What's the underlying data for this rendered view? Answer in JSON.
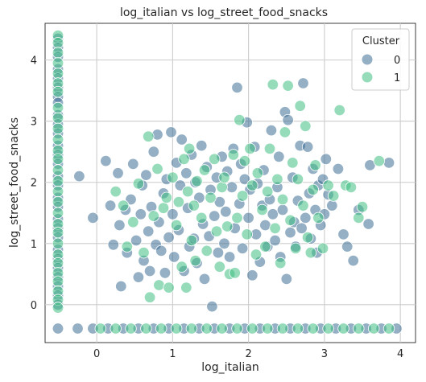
{
  "chart_data": {
    "type": "scatter",
    "title": "log_italian vs log_street_food_snacks",
    "xlabel": "log_italian",
    "ylabel": "log_street_food_snacks",
    "xlim": [
      -0.68,
      4.2
    ],
    "ylim": [
      -0.62,
      4.6
    ],
    "xticks": [
      0,
      1,
      2,
      3,
      4
    ],
    "yticks": [
      0,
      1,
      2,
      3,
      4
    ],
    "grid": true,
    "legend": {
      "title": "Cluster",
      "placement": "top-right",
      "entries": [
        {
          "label": "0",
          "color": "#3e6f96"
        },
        {
          "label": "1",
          "color": "#3fbf84"
        }
      ]
    },
    "series": [
      {
        "name": "0",
        "color": "#3e6f96",
        "points": [
          [
            -0.51,
            4.35
          ],
          [
            -0.51,
            4.2
          ],
          [
            -0.51,
            4.05
          ],
          [
            -0.51,
            3.85
          ],
          [
            -0.51,
            3.7
          ],
          [
            -0.51,
            3.55
          ],
          [
            -0.51,
            3.4
          ],
          [
            -0.51,
            3.3
          ],
          [
            -0.51,
            3.1
          ],
          [
            -0.51,
            2.95
          ],
          [
            -0.51,
            2.8
          ],
          [
            -0.51,
            2.6
          ],
          [
            -0.51,
            2.45
          ],
          [
            -0.51,
            2.3
          ],
          [
            -0.51,
            2.1
          ],
          [
            -0.51,
            1.95
          ],
          [
            -0.51,
            1.75
          ],
          [
            -0.51,
            1.6
          ],
          [
            -0.51,
            1.4
          ],
          [
            -0.51,
            1.25
          ],
          [
            -0.51,
            1.1
          ],
          [
            -0.51,
            0.9
          ],
          [
            -0.51,
            0.75
          ],
          [
            -0.51,
            0.6
          ],
          [
            -0.51,
            0.45
          ],
          [
            -0.51,
            0.3
          ],
          [
            -0.51,
            0.15
          ],
          [
            -0.51,
            0.0
          ],
          [
            -0.51,
            -0.39
          ],
          [
            -0.23,
            2.1
          ],
          [
            -0.05,
            1.42
          ],
          [
            0.12,
            2.35
          ],
          [
            0.18,
            1.62
          ],
          [
            0.22,
            0.98
          ],
          [
            0.28,
            2.15
          ],
          [
            0.3,
            1.3
          ],
          [
            0.32,
            0.3
          ],
          [
            0.38,
            1.55
          ],
          [
            0.4,
            0.85
          ],
          [
            0.45,
            1.72
          ],
          [
            0.48,
            2.3
          ],
          [
            0.52,
            1.05
          ],
          [
            0.55,
            0.45
          ],
          [
            0.58,
            1.48
          ],
          [
            0.6,
            1.95
          ],
          [
            0.62,
            0.72
          ],
          [
            0.65,
            2.12
          ],
          [
            0.68,
            1.2
          ],
          [
            0.7,
            0.55
          ],
          [
            0.72,
            1.6
          ],
          [
            0.75,
            2.5
          ],
          [
            0.78,
            0.98
          ],
          [
            0.8,
            2.78
          ],
          [
            0.82,
            1.35
          ],
          [
            0.85,
            0.88
          ],
          [
            0.88,
            1.82
          ],
          [
            0.9,
            0.52
          ],
          [
            0.92,
            2.05
          ],
          [
            0.95,
            1.1
          ],
          [
            0.98,
            2.82
          ],
          [
            1.0,
            1.48
          ],
          [
            1.02,
            0.78
          ],
          [
            1.05,
            2.32
          ],
          [
            1.08,
            1.22
          ],
          [
            1.1,
            1.95
          ],
          [
            1.12,
            2.7
          ],
          [
            1.15,
            0.55
          ],
          [
            1.18,
            2.15
          ],
          [
            1.2,
            1.58
          ],
          [
            1.22,
            0.95
          ],
          [
            1.25,
            2.45
          ],
          [
            1.28,
            1.08
          ],
          [
            1.3,
            2.0
          ],
          [
            1.32,
            0.68
          ],
          [
            1.35,
            1.75
          ],
          [
            1.38,
            2.6
          ],
          [
            1.4,
            1.32
          ],
          [
            1.42,
            0.42
          ],
          [
            1.45,
            2.25
          ],
          [
            1.48,
            1.12
          ],
          [
            1.5,
            1.88
          ],
          [
            1.52,
            -0.03
          ],
          [
            1.55,
            1.45
          ],
          [
            1.58,
            2.08
          ],
          [
            1.6,
            0.85
          ],
          [
            1.62,
            1.68
          ],
          [
            1.65,
            2.42
          ],
          [
            1.68,
            1.0
          ],
          [
            1.7,
            1.52
          ],
          [
            1.72,
            2.18
          ],
          [
            1.75,
            0.78
          ],
          [
            1.78,
            1.92
          ],
          [
            1.8,
            2.55
          ],
          [
            1.82,
            1.25
          ],
          [
            1.85,
            3.55
          ],
          [
            1.88,
            1.65
          ],
          [
            1.9,
            2.3
          ],
          [
            1.92,
            0.92
          ],
          [
            1.95,
            2.05
          ],
          [
            1.98,
            2.98
          ],
          [
            2.0,
            1.42
          ],
          [
            2.02,
            1.88
          ],
          [
            2.05,
            0.48
          ],
          [
            2.08,
            2.58
          ],
          [
            2.1,
            1.15
          ],
          [
            2.12,
            1.98
          ],
          [
            2.15,
            0.7
          ],
          [
            2.18,
            1.62
          ],
          [
            2.2,
            2.2
          ],
          [
            2.22,
            1.3
          ],
          [
            2.25,
            0.95
          ],
          [
            2.28,
            1.72
          ],
          [
            2.3,
            2.85
          ],
          [
            2.32,
            1.48
          ],
          [
            2.35,
            1.05
          ],
          [
            2.38,
            1.92
          ],
          [
            2.4,
            2.42
          ],
          [
            2.42,
            0.78
          ],
          [
            2.45,
            1.55
          ],
          [
            2.48,
            3.15
          ],
          [
            2.5,
            0.42
          ],
          [
            2.52,
            3.02
          ],
          [
            2.55,
            1.18
          ],
          [
            2.58,
            2.08
          ],
          [
            2.6,
            1.35
          ],
          [
            2.62,
            0.95
          ],
          [
            2.65,
            1.7
          ],
          [
            2.68,
            2.6
          ],
          [
            2.7,
            1.25
          ],
          [
            2.72,
            3.62
          ],
          [
            2.75,
            1.42
          ],
          [
            2.78,
            2.58
          ],
          [
            2.8,
            1.82
          ],
          [
            2.82,
            1.08
          ],
          [
            2.85,
            2.22
          ],
          [
            2.88,
            1.55
          ],
          [
            2.9,
            0.85
          ],
          [
            2.92,
            1.95
          ],
          [
            2.95,
            1.3
          ],
          [
            2.98,
            2.05
          ],
          [
            3.0,
            1.48
          ],
          [
            3.02,
            2.38
          ],
          [
            3.05,
            1.8
          ],
          [
            3.1,
            1.62
          ],
          [
            3.18,
            2.22
          ],
          [
            3.25,
            1.15
          ],
          [
            3.3,
            0.95
          ],
          [
            3.38,
            0.72
          ],
          [
            3.45,
            1.55
          ],
          [
            3.58,
            1.32
          ],
          [
            3.6,
            2.28
          ],
          [
            3.85,
            2.32
          ],
          [
            -0.25,
            -0.39
          ],
          [
            -0.05,
            -0.39
          ],
          [
            0.15,
            -0.39
          ],
          [
            0.35,
            -0.39
          ],
          [
            0.55,
            -0.39
          ],
          [
            0.75,
            -0.39
          ],
          [
            0.95,
            -0.39
          ],
          [
            1.15,
            -0.39
          ],
          [
            1.35,
            -0.39
          ],
          [
            1.55,
            -0.39
          ],
          [
            1.75,
            -0.39
          ],
          [
            1.95,
            -0.39
          ],
          [
            2.15,
            -0.39
          ],
          [
            2.35,
            -0.39
          ],
          [
            2.55,
            -0.39
          ],
          [
            2.75,
            -0.39
          ],
          [
            2.95,
            -0.39
          ],
          [
            3.15,
            -0.39
          ],
          [
            3.35,
            -0.39
          ],
          [
            3.55,
            -0.39
          ],
          [
            3.75,
            -0.39
          ],
          [
            3.95,
            -0.39
          ]
        ]
      },
      {
        "name": "1",
        "color": "#3fbf84",
        "points": [
          [
            -0.51,
            4.4
          ],
          [
            -0.51,
            4.28
          ],
          [
            -0.51,
            4.12
          ],
          [
            -0.51,
            3.95
          ],
          [
            -0.51,
            3.78
          ],
          [
            -0.51,
            3.62
          ],
          [
            -0.51,
            3.48
          ],
          [
            -0.51,
            3.22
          ],
          [
            -0.51,
            3.05
          ],
          [
            -0.51,
            2.88
          ],
          [
            -0.51,
            2.7
          ],
          [
            -0.51,
            2.52
          ],
          [
            -0.51,
            2.38
          ],
          [
            -0.51,
            2.2
          ],
          [
            -0.51,
            2.02
          ],
          [
            -0.51,
            1.85
          ],
          [
            -0.51,
            1.68
          ],
          [
            -0.51,
            1.5
          ],
          [
            -0.51,
            1.32
          ],
          [
            -0.51,
            1.18
          ],
          [
            -0.51,
            1.0
          ],
          [
            -0.51,
            0.82
          ],
          [
            -0.51,
            0.68
          ],
          [
            -0.51,
            0.52
          ],
          [
            -0.51,
            0.38
          ],
          [
            -0.51,
            0.22
          ],
          [
            -0.51,
            0.08
          ],
          [
            -0.51,
            -0.05
          ],
          [
            0.25,
            1.85
          ],
          [
            0.35,
            1.62
          ],
          [
            0.4,
            0.95
          ],
          [
            0.48,
            1.35
          ],
          [
            0.55,
            1.98
          ],
          [
            0.62,
            0.85
          ],
          [
            0.68,
            2.75
          ],
          [
            0.7,
            0.12
          ],
          [
            0.75,
            1.45
          ],
          [
            0.8,
            2.22
          ],
          [
            0.82,
            0.32
          ],
          [
            0.88,
            1.58
          ],
          [
            0.92,
            1.75
          ],
          [
            0.95,
            0.28
          ],
          [
            1.0,
            2.08
          ],
          [
            1.05,
            1.3
          ],
          [
            1.08,
            1.68
          ],
          [
            1.12,
            0.62
          ],
          [
            1.15,
            2.38
          ],
          [
            1.18,
            0.28
          ],
          [
            1.2,
            1.85
          ],
          [
            1.22,
            2.55
          ],
          [
            1.25,
            1.05
          ],
          [
            1.28,
            1.62
          ],
          [
            1.3,
            0.72
          ],
          [
            1.32,
            2.02
          ],
          [
            1.38,
            1.42
          ],
          [
            1.42,
            2.2
          ],
          [
            1.45,
            0.88
          ],
          [
            1.5,
            1.75
          ],
          [
            1.55,
            2.38
          ],
          [
            1.58,
            1.2
          ],
          [
            1.62,
            0.62
          ],
          [
            1.65,
            1.92
          ],
          [
            1.68,
            2.08
          ],
          [
            1.72,
            1.28
          ],
          [
            1.75,
            0.5
          ],
          [
            1.8,
            2.45
          ],
          [
            1.82,
            0.52
          ],
          [
            1.85,
            1.42
          ],
          [
            1.88,
            3.02
          ],
          [
            1.92,
            1.78
          ],
          [
            1.95,
            2.35
          ],
          [
            1.98,
            1.15
          ],
          [
            2.02,
            2.55
          ],
          [
            2.05,
            1.95
          ],
          [
            2.1,
            0.82
          ],
          [
            2.12,
            2.15
          ],
          [
            2.18,
            1.55
          ],
          [
            2.22,
            0.95
          ],
          [
            2.25,
            1.85
          ],
          [
            2.28,
            2.55
          ],
          [
            2.32,
            3.6
          ],
          [
            2.35,
            1.25
          ],
          [
            2.38,
            2.05
          ],
          [
            2.42,
            0.68
          ],
          [
            2.45,
            1.72
          ],
          [
            2.48,
            2.82
          ],
          [
            2.52,
            3.58
          ],
          [
            2.55,
            1.38
          ],
          [
            2.58,
            2.32
          ],
          [
            2.62,
            0.92
          ],
          [
            2.65,
            2.05
          ],
          [
            2.68,
            3.25
          ],
          [
            2.72,
            1.62
          ],
          [
            2.75,
            2.92
          ],
          [
            2.78,
            1.1
          ],
          [
            2.82,
            0.85
          ],
          [
            2.85,
            1.88
          ],
          [
            2.88,
            2.28
          ],
          [
            2.92,
            1.42
          ],
          [
            2.98,
            0.92
          ],
          [
            3.05,
            1.95
          ],
          [
            3.12,
            1.78
          ],
          [
            3.2,
            3.18
          ],
          [
            3.28,
            1.95
          ],
          [
            3.35,
            1.92
          ],
          [
            3.45,
            1.42
          ],
          [
            3.5,
            1.6
          ],
          [
            3.72,
            2.35
          ],
          [
            0.05,
            -0.39
          ],
          [
            0.25,
            -0.39
          ],
          [
            0.45,
            -0.39
          ],
          [
            0.65,
            -0.39
          ],
          [
            0.85,
            -0.39
          ],
          [
            1.05,
            -0.39
          ],
          [
            1.25,
            -0.39
          ],
          [
            1.45,
            -0.39
          ],
          [
            1.65,
            -0.39
          ],
          [
            1.85,
            -0.39
          ],
          [
            2.05,
            -0.39
          ],
          [
            2.25,
            -0.39
          ],
          [
            2.45,
            -0.39
          ],
          [
            2.65,
            -0.39
          ],
          [
            2.85,
            -0.39
          ],
          [
            3.05,
            -0.39
          ],
          [
            3.25,
            -0.39
          ],
          [
            3.45,
            -0.39
          ],
          [
            3.65,
            -0.39
          ],
          [
            3.85,
            -0.39
          ]
        ]
      }
    ]
  }
}
